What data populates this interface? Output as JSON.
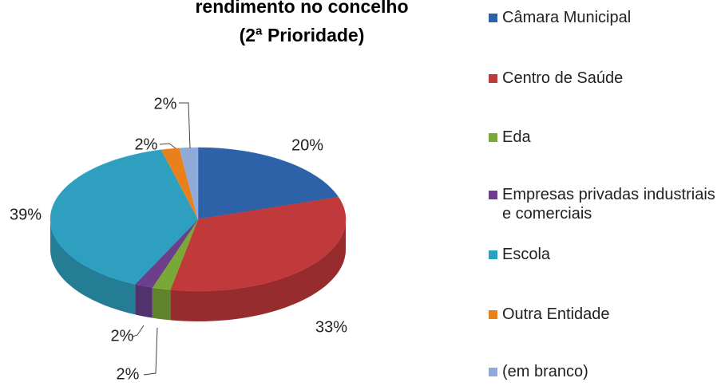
{
  "chart_data": {
    "type": "pie",
    "title": [
      "rendimento no concelho",
      "(2ª Prioridade)"
    ],
    "categories": [
      "Câmara Municipal",
      "Centro de Saúde",
      "Eda",
      "Empresas privadas industriais e comerciais",
      "Escola",
      "Outra Entidade",
      "(em branco)"
    ],
    "values": [
      20,
      33,
      2,
      2,
      39,
      2,
      2
    ],
    "value_labels": [
      "20%",
      "33%",
      "2%",
      "2%",
      "39%",
      "2%",
      "2%"
    ],
    "colors": [
      "#2e62a8",
      "#c0393b",
      "#7aa836",
      "#6b3f8c",
      "#2e9fbf",
      "#e8801e",
      "#8fa9d8"
    ]
  }
}
